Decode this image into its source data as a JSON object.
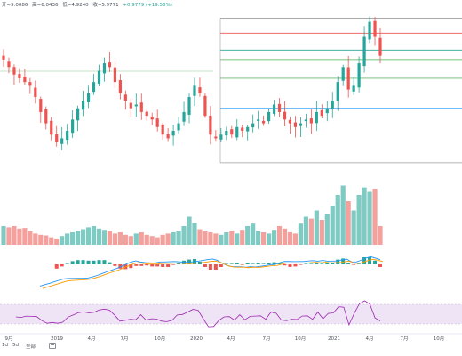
{
  "ohlc_readout": {
    "open": "开=5.0086",
    "high": "高=6.0436",
    "low": "低=4.9240",
    "close": "收=5.9771",
    "change": "+0.9779 (+19.56%)"
  },
  "timeline": [
    "9月",
    "2019",
    "4月",
    "7月",
    "10月",
    "2020",
    "4月",
    "7月",
    "10月",
    "2021",
    "4月",
    "7月",
    "10月"
  ],
  "range_tabs": [
    "1d",
    "5d",
    "全部"
  ],
  "colors": {
    "up": "#26a69a",
    "down": "#ef5350",
    "volume_up": "#7fcbc4",
    "volume_down": "#f4a19e",
    "macd_line": "#2196f3",
    "signal_line": "#ff9800",
    "rsi_line": "#9c27b0",
    "rsi_band": "#efe4f6",
    "fib_levels": [
      "#9e9e9e",
      "#ef5350",
      "#26a69a",
      "#4caf50",
      "#66bb6a",
      "#42a5f5",
      "#9e9e9e"
    ]
  },
  "chart_data": {
    "type": "candlestick",
    "price_series": [
      5.0,
      4.8,
      4.6,
      4.5,
      4.4,
      4.3,
      4.0,
      3.6,
      3.3,
      3.0,
      2.8,
      2.9,
      3.1,
      3.4,
      3.7,
      3.9,
      4.1,
      4.4,
      4.7,
      4.9,
      4.8,
      4.4,
      4.1,
      3.9,
      3.7,
      3.8,
      3.6,
      3.5,
      3.4,
      3.2,
      3.0,
      2.9,
      3.1,
      3.3,
      3.6,
      4.0,
      4.3,
      4.1,
      3.5,
      3.0,
      2.9,
      3.0,
      3.1,
      3.0,
      3.2,
      3.1,
      3.2,
      3.3,
      3.4,
      3.3,
      3.6,
      3.8,
      3.6,
      3.4,
      3.3,
      3.2,
      3.3,
      3.4,
      3.3,
      3.6,
      3.5,
      3.7,
      3.9,
      4.4,
      4.8,
      4.2,
      4.3,
      4.9,
      5.6,
      6.0,
      5.6,
      5.1
    ],
    "volume_series": [
      0.3,
      0.28,
      0.3,
      0.26,
      0.27,
      0.22,
      0.18,
      0.16,
      0.15,
      0.12,
      0.1,
      0.14,
      0.18,
      0.2,
      0.22,
      0.25,
      0.28,
      0.3,
      0.26,
      0.24,
      0.22,
      0.18,
      0.2,
      0.16,
      0.14,
      0.18,
      0.2,
      0.16,
      0.14,
      0.12,
      0.16,
      0.18,
      0.2,
      0.22,
      0.3,
      0.45,
      0.35,
      0.25,
      0.22,
      0.2,
      0.18,
      0.16,
      0.2,
      0.22,
      0.18,
      0.24,
      0.3,
      0.34,
      0.22,
      0.2,
      0.18,
      0.24,
      0.3,
      0.26,
      0.2,
      0.18,
      0.34,
      0.45,
      0.42,
      0.55,
      0.4,
      0.5,
      0.62,
      0.8,
      0.95,
      0.7,
      0.55,
      0.8,
      0.92,
      0.85,
      0.9,
      0.3
    ],
    "fib_levels": [
      6.1,
      5.7,
      5.25,
      5.0,
      4.5,
      3.7,
      2.25
    ]
  }
}
